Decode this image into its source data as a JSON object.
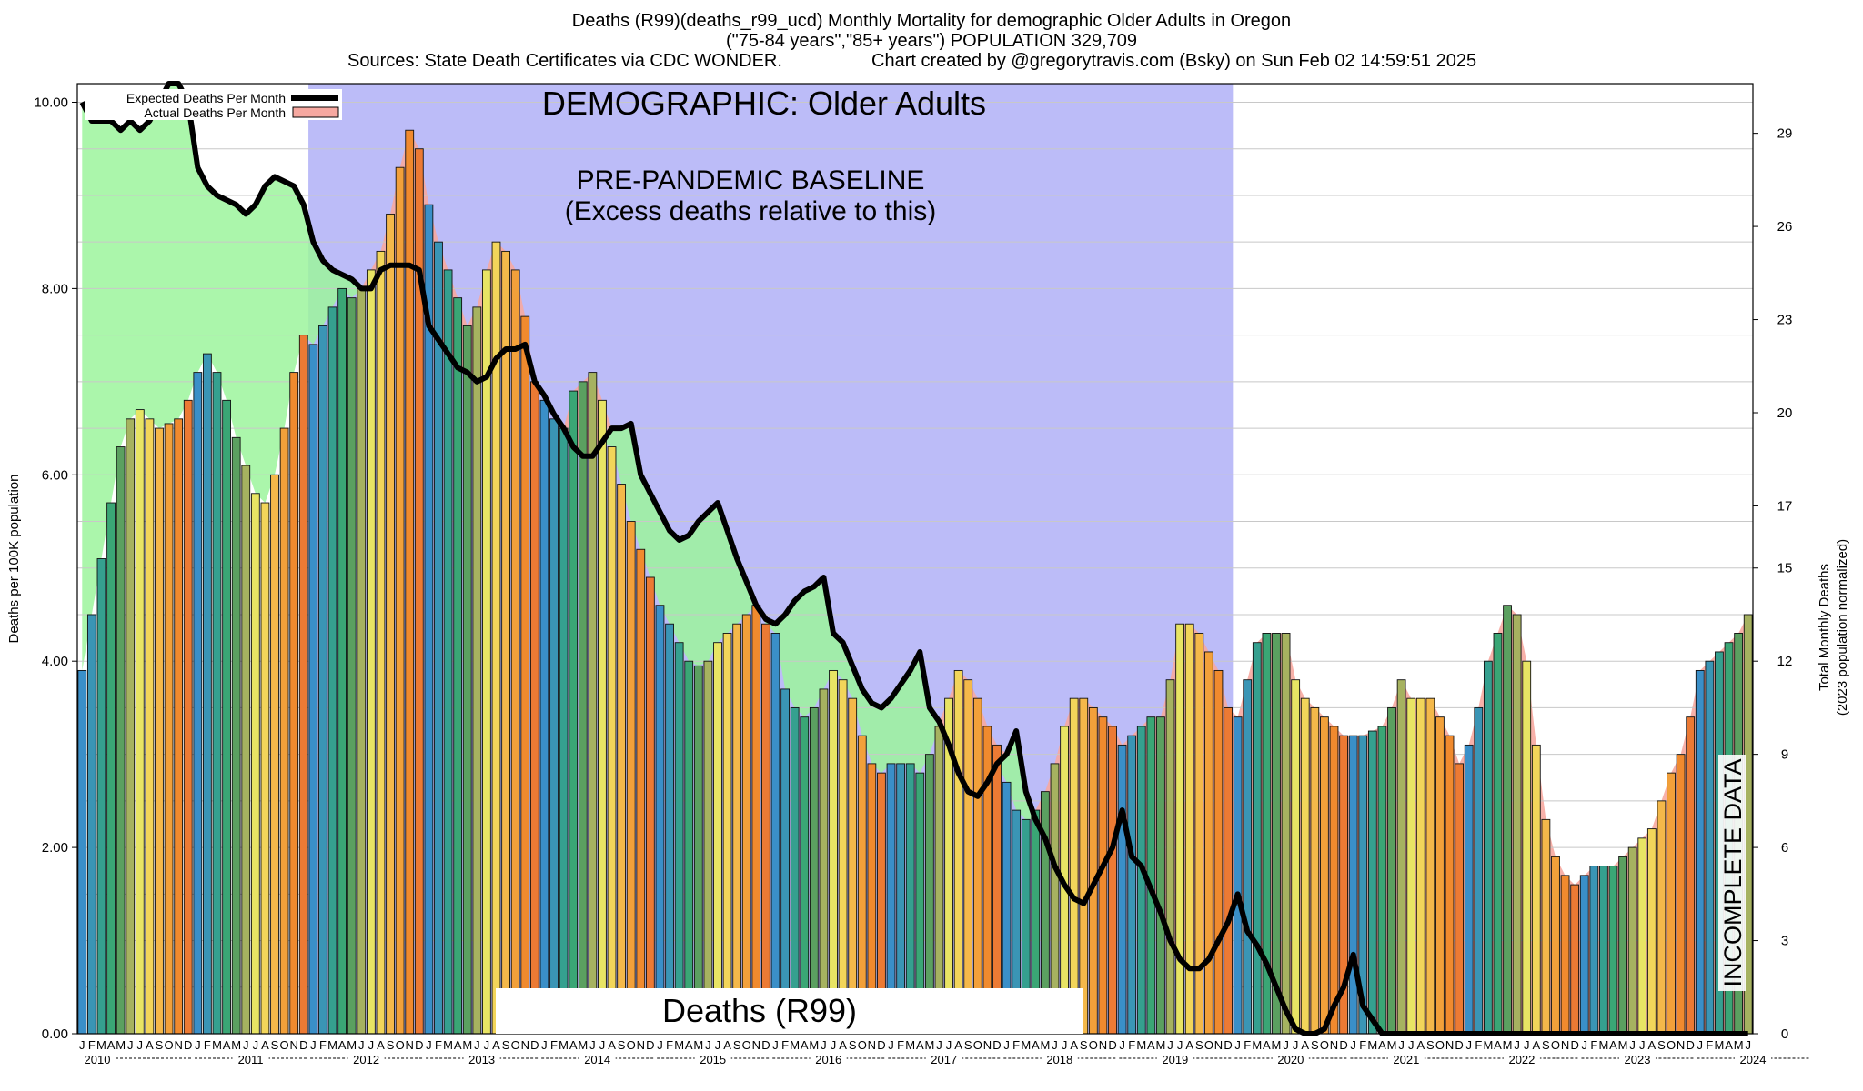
{
  "header": {
    "title": "Deaths (R99)(deaths_r99_ucd) Monthly Mortality for demographic Older Adults in Oregon",
    "subtitle": "(\"75-84 years\",\"85+ years\") POPULATION 329,709",
    "sources": "Sources: State Death Certificates via CDC WONDER.",
    "credit": "Chart created by @gregorytravis.com (Bsky) on Sun Feb 02 14:59:51 2025"
  },
  "chart_data": {
    "type": "bar",
    "title": "Deaths (R99)(deaths_r99_ucd) Monthly Mortality for demographic Older Adults in Oregon",
    "ylabel": "Deaths per 100K population",
    "y2label": [
      "Total Monthly Deaths",
      "(2023 population normalized)"
    ],
    "ylim": [
      0,
      10.2
    ],
    "yticks": [
      "0.00",
      "2.00",
      "4.00",
      "6.00",
      "8.00",
      "10.00"
    ],
    "y2ticks": [
      "0",
      "3",
      "6",
      "9",
      "12",
      "15",
      "17",
      "20",
      "23",
      "26",
      "29"
    ],
    "x_start": "2010-01",
    "month_letters": [
      "J",
      "F",
      "M",
      "A",
      "M",
      "J",
      "J",
      "A",
      "S",
      "O",
      "N",
      "D"
    ],
    "years": [
      "2010",
      "2011",
      "2012",
      "2013",
      "2014",
      "2015",
      "2016",
      "2017",
      "2018",
      "2019",
      "2020",
      "2021",
      "2022",
      "2023",
      "2024"
    ],
    "legend": {
      "position": "top-left",
      "items": [
        "Expected Deaths Per Month",
        "Actual Deaths Per Month"
      ]
    },
    "annotations": {
      "demographic": "DEMOGRAPHIC: Older Adults",
      "baseline_1": "PRE-PANDEMIC BASELINE",
      "baseline_2": "(Excess deaths relative to this)",
      "cause": "Deaths (R99)",
      "incomplete": "INCOMPLETE DATA"
    },
    "baseline_period": [
      "2012-01",
      "2019-12"
    ],
    "incomplete_from": "2024-08",
    "actual": [
      3.9,
      4.5,
      5.1,
      5.7,
      6.3,
      6.6,
      6.7,
      6.6,
      6.5,
      6.55,
      6.6,
      6.8,
      7.1,
      7.3,
      7.1,
      6.8,
      6.4,
      6.1,
      5.8,
      5.7,
      6.0,
      6.5,
      7.1,
      7.5,
      7.4,
      7.6,
      7.8,
      8.0,
      7.9,
      8.0,
      8.2,
      8.4,
      8.8,
      9.3,
      9.7,
      9.5,
      8.9,
      8.5,
      8.2,
      7.9,
      7.6,
      7.8,
      8.2,
      8.5,
      8.4,
      8.2,
      7.7,
      7.0,
      6.8,
      6.6,
      6.5,
      6.9,
      7.0,
      7.1,
      6.8,
      6.3,
      5.9,
      5.5,
      5.2,
      4.9,
      4.6,
      4.4,
      4.2,
      4.0,
      3.95,
      4.0,
      4.2,
      4.3,
      4.4,
      4.5,
      4.6,
      4.4,
      4.3,
      3.7,
      3.5,
      3.4,
      3.5,
      3.7,
      3.9,
      3.8,
      3.6,
      3.2,
      2.9,
      2.8,
      2.9,
      2.9,
      2.9,
      2.8,
      3.0,
      3.3,
      3.6,
      3.9,
      3.8,
      3.6,
      3.3,
      3.1,
      2.7,
      2.4,
      2.3,
      2.4,
      2.6,
      2.9,
      3.3,
      3.6,
      3.6,
      3.5,
      3.4,
      3.3,
      3.1,
      3.2,
      3.3,
      3.4,
      3.4,
      3.8,
      4.4,
      4.4,
      4.3,
      4.1,
      3.9,
      3.5,
      3.4,
      3.8,
      4.2,
      4.3,
      4.3,
      4.3,
      3.8,
      3.6,
      3.5,
      3.4,
      3.3,
      3.2,
      3.2,
      3.2,
      3.25,
      3.3,
      3.5,
      3.8,
      3.6,
      3.6,
      3.6,
      3.4,
      3.2,
      2.9,
      3.1,
      3.5,
      4.0,
      4.3,
      4.6,
      4.5,
      4.0,
      3.1,
      2.3,
      1.9,
      1.7,
      1.6,
      1.7,
      1.8,
      1.8,
      1.8,
      1.9,
      2.0,
      2.1,
      2.2,
      2.5,
      2.8,
      3.0,
      3.4,
      3.9,
      4.0,
      4.1,
      4.2,
      4.3,
      4.5
    ],
    "expected": [
      10.0,
      9.8,
      9.8,
      9.8,
      9.7,
      9.8,
      9.7,
      9.8,
      10.0,
      10.2,
      10.2,
      10.0,
      9.3,
      9.1,
      9.0,
      8.95,
      8.9,
      8.8,
      8.9,
      9.1,
      9.2,
      9.15,
      9.1,
      8.9,
      8.5,
      8.3,
      8.2,
      8.15,
      8.1,
      8.0,
      8.0,
      8.2,
      8.25,
      8.25,
      8.25,
      8.2,
      7.6,
      7.45,
      7.3,
      7.15,
      7.1,
      7.0,
      7.05,
      7.25,
      7.35,
      7.35,
      7.4,
      7.0,
      6.85,
      6.65,
      6.5,
      6.3,
      6.2,
      6.2,
      6.35,
      6.5,
      6.5,
      6.55,
      6.0,
      5.8,
      5.6,
      5.4,
      5.3,
      5.35,
      5.5,
      5.6,
      5.7,
      5.4,
      5.1,
      4.85,
      4.6,
      4.45,
      4.4,
      4.5,
      4.65,
      4.75,
      4.8,
      4.9,
      4.3,
      4.2,
      3.95,
      3.7,
      3.55,
      3.5,
      3.6,
      3.75,
      3.9,
      4.1,
      3.5,
      3.35,
      3.1,
      2.8,
      2.6,
      2.55,
      2.7,
      2.9,
      3.0,
      3.25,
      2.6,
      2.3,
      2.1,
      1.8,
      1.6,
      1.45,
      1.4,
      1.6,
      1.8,
      2.0,
      2.4,
      1.9,
      1.8,
      1.55,
      1.3,
      1.0,
      0.8,
      0.7,
      0.7,
      0.8,
      1.0,
      1.2,
      1.5,
      1.1,
      0.95,
      0.75,
      0.5,
      0.25,
      0.05,
      0.0,
      0.0,
      0.05,
      0.3,
      0.5,
      0.85,
      0.3,
      0.15,
      0.0,
      0,
      0,
      0,
      0,
      0,
      0,
      0,
      0,
      0,
      0,
      0,
      0,
      0,
      0,
      0,
      0,
      0,
      0,
      0,
      0,
      0,
      0,
      0,
      0,
      0,
      0,
      0,
      0,
      0,
      0,
      0,
      0,
      0,
      0,
      0,
      0,
      0,
      0
    ]
  }
}
